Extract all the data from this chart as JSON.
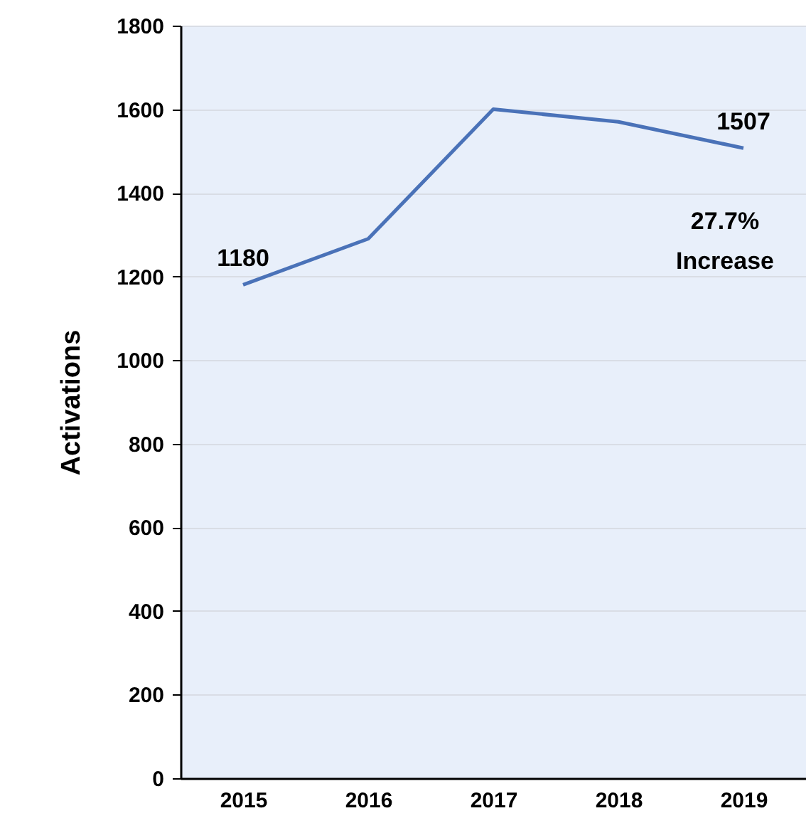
{
  "chart_data": {
    "type": "line",
    "ylabel": "Activations",
    "categories": [
      "2015",
      "2016",
      "2017",
      "2018",
      "2019"
    ],
    "series": [
      {
        "color": "#4a72b8",
        "values": [
          1180,
          1290,
          1600,
          1570,
          1507
        ],
        "value_labels": [
          "1180",
          null,
          null,
          null,
          "1507"
        ]
      }
    ],
    "ylim": [
      0,
      1800
    ],
    "yticks": [
      0,
      200,
      400,
      600,
      800,
      1000,
      1200,
      1400,
      1600,
      1800
    ],
    "grid": "y",
    "annotations": [
      "27.7% Increase"
    ]
  }
}
